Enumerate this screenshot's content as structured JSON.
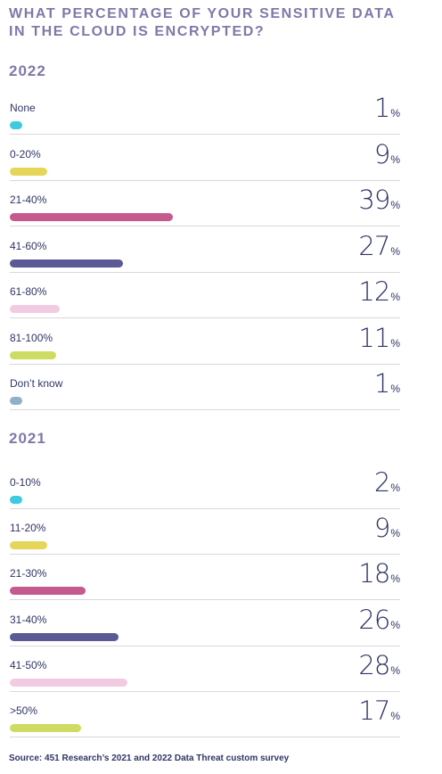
{
  "header": {
    "title_line1": "WHAT PERCENTAGE OF YOUR SENSITIVE DATA",
    "title_line2": "IN THE CLOUD IS ENCRYPTED?"
  },
  "chart_data": [
    {
      "type": "bar",
      "title": "2022",
      "xlim": [
        0,
        100
      ],
      "categories": [
        "None",
        "0-20%",
        "21-40%",
        "41-60%",
        "61-80%",
        "81-100%",
        "Don’t know"
      ],
      "values": [
        1,
        9,
        39,
        27,
        12,
        11,
        1
      ],
      "colors": [
        "#3ecbe0",
        "#e5d65a",
        "#c45a8e",
        "#5b5a95",
        "#f1cbe2",
        "#cfdc63",
        "#8eb1c6"
      ],
      "unit": "%"
    },
    {
      "type": "bar",
      "title": "2021",
      "xlim": [
        0,
        100
      ],
      "categories": [
        "0-10%",
        "11-20%",
        "21-30%",
        "31-40%",
        "41-50%",
        ">50%"
      ],
      "values": [
        2,
        9,
        18,
        26,
        28,
        17
      ],
      "colors": [
        "#3ecbe0",
        "#e5d65a",
        "#c45a8e",
        "#5b5a95",
        "#f1cbe2",
        "#cfdc63"
      ],
      "unit": "%"
    }
  ],
  "footer": {
    "source": "Source: 451 Research’s 2021 and 2022 Data Threat custom survey"
  }
}
